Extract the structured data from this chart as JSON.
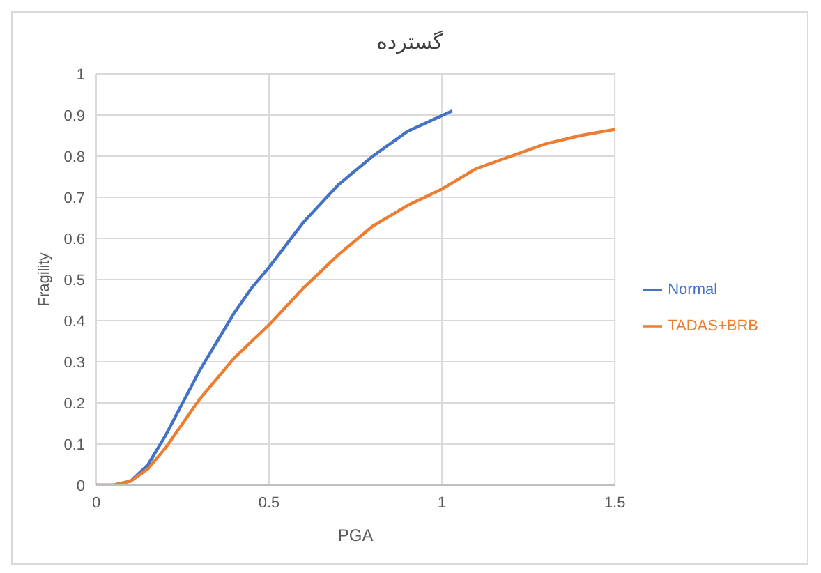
{
  "chart_data": {
    "type": "line",
    "title": "گسترده",
    "xlabel": "PGA",
    "ylabel": "Fragility",
    "xlim": [
      0,
      1.5
    ],
    "xticks": [
      0,
      0.5,
      1,
      1.5
    ],
    "ylim": [
      0,
      1
    ],
    "yticks": [
      0,
      0.1,
      0.2,
      0.3,
      0.4,
      0.5,
      0.6,
      0.7,
      0.8,
      0.9,
      1
    ],
    "grid": true,
    "legend": "right",
    "marker": "none",
    "line_style": "solid",
    "series": [
      {
        "name": "Normal",
        "color": "#4472c4",
        "x": [
          0,
          0.05,
          0.1,
          0.15,
          0.2,
          0.25,
          0.3,
          0.35,
          0.4,
          0.45,
          0.5,
          0.6,
          0.7,
          0.8,
          0.9,
          1.03
        ],
        "values": [
          0,
          0,
          0.01,
          0.05,
          0.12,
          0.2,
          0.28,
          0.35,
          0.42,
          0.48,
          0.53,
          0.64,
          0.73,
          0.8,
          0.86,
          0.91
        ]
      },
      {
        "name": "TADAS+BRB",
        "color": "#ed7d31",
        "x": [
          0,
          0.05,
          0.1,
          0.15,
          0.2,
          0.25,
          0.3,
          0.35,
          0.4,
          0.45,
          0.5,
          0.6,
          0.7,
          0.8,
          0.9,
          1,
          1.1,
          1.2,
          1.3,
          1.4,
          1.5
        ],
        "values": [
          0,
          0,
          0.01,
          0.04,
          0.09,
          0.15,
          0.21,
          0.26,
          0.31,
          0.35,
          0.39,
          0.48,
          0.56,
          0.63,
          0.68,
          0.72,
          0.77,
          0.8,
          0.83,
          0.85,
          0.865
        ]
      }
    ]
  }
}
